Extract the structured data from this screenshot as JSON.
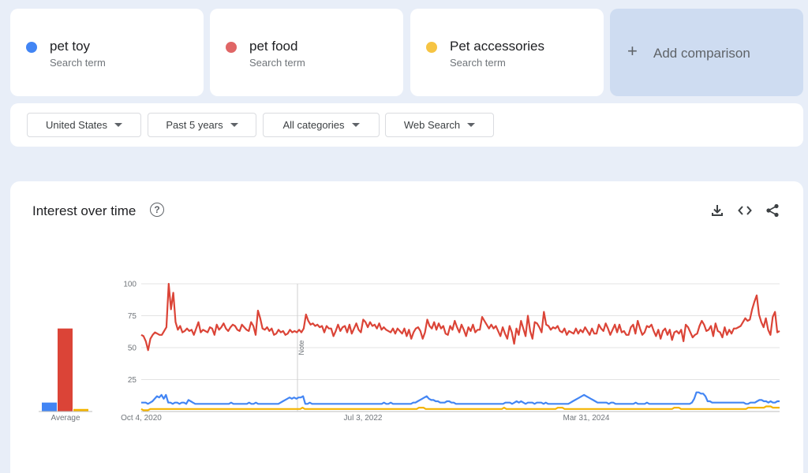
{
  "terms": [
    {
      "name": "pet toy",
      "sub": "Search term",
      "color": "#4285f4"
    },
    {
      "name": "pet food",
      "sub": "Search term",
      "color": "#db4437"
    },
    {
      "name": "Pet accessories",
      "sub": "Search term",
      "color": "#f4b400"
    }
  ],
  "add_comparison": "Add comparison",
  "filters": {
    "region": "United States",
    "period": "Past 5 years",
    "category": "All categories",
    "search_type": "Web Search"
  },
  "panel": {
    "title": "Interest over time",
    "help_icon": "help-circle-icon",
    "tools": [
      "download-icon",
      "embed-code-icon",
      "share-icon"
    ]
  },
  "chart_data": {
    "type": "line",
    "ylim": [
      0,
      100
    ],
    "y_ticks": [
      25,
      50,
      75,
      100
    ],
    "x_tick_labels": [
      "Oct 4, 2020",
      "Jul 3, 2022",
      "Mar 31, 2024"
    ],
    "note_label": "Note",
    "average_label": "Average",
    "averages": [
      {
        "name": "pet toy",
        "value": 7
      },
      {
        "name": "pet food",
        "value": 65
      },
      {
        "name": "Pet accessories",
        "value": 2
      }
    ],
    "series": [
      {
        "name": "pet food",
        "color": "#db4437",
        "values": [
          60,
          59,
          55,
          48,
          57,
          60,
          62,
          61,
          60,
          60,
          63,
          66,
          100,
          80,
          93,
          70,
          64,
          67,
          62,
          63,
          65,
          63,
          64,
          60,
          65,
          70,
          62,
          64,
          63,
          62,
          66,
          65,
          60,
          68,
          64,
          66,
          69,
          65,
          63,
          66,
          68,
          67,
          64,
          63,
          68,
          66,
          64,
          63,
          70,
          67,
          60,
          79,
          73,
          65,
          64,
          66,
          63,
          65,
          60,
          61,
          64,
          62,
          63,
          60,
          61,
          64,
          62,
          63,
          62,
          64,
          62,
          65,
          76,
          71,
          68,
          69,
          67,
          68,
          66,
          67,
          62,
          67,
          65,
          65,
          59,
          63,
          68,
          63,
          66,
          67,
          62,
          68,
          61,
          65,
          69,
          64,
          62,
          72,
          70,
          66,
          70,
          67,
          68,
          65,
          69,
          64,
          66,
          64,
          63,
          62,
          65,
          61,
          65,
          63,
          61,
          65,
          59,
          64,
          57,
          62,
          65,
          66,
          63,
          57,
          62,
          72,
          67,
          65,
          70,
          64,
          69,
          65,
          67,
          61,
          60,
          67,
          64,
          71,
          66,
          62,
          68,
          64,
          59,
          66,
          63,
          68,
          62,
          64,
          64,
          74,
          71,
          68,
          65,
          68,
          65,
          67,
          63,
          59,
          66,
          61,
          57,
          67,
          62,
          53,
          65,
          60,
          71,
          65,
          59,
          75,
          63,
          57,
          70,
          69,
          66,
          62,
          78,
          68,
          67,
          64,
          66,
          65,
          67,
          63,
          62,
          65,
          60,
          63,
          62,
          61,
          65,
          61,
          64,
          62,
          66,
          63,
          60,
          65,
          61,
          61,
          68,
          65,
          63,
          69,
          65,
          60,
          64,
          68,
          62,
          68,
          62,
          63,
          60,
          60,
          66,
          68,
          61,
          71,
          65,
          60,
          62,
          67,
          66,
          68,
          63,
          59,
          64,
          57,
          63,
          65,
          60,
          64,
          56,
          62,
          63,
          61,
          64,
          55,
          68,
          66,
          62,
          58,
          60,
          61,
          67,
          71,
          68,
          63,
          64,
          67,
          59,
          69,
          63,
          62,
          58,
          66,
          60,
          64,
          61,
          65,
          65,
          66,
          67,
          70,
          73,
          71,
          72,
          80,
          86,
          91,
          76,
          70,
          66,
          73,
          64,
          60,
          74,
          78,
          62,
          63
        ]
      },
      {
        "name": "pet toy",
        "color": "#4285f4",
        "values": [
          7,
          7,
          7,
          6,
          7,
          8,
          10,
          12,
          11,
          13,
          10,
          13,
          7,
          7,
          6,
          7,
          7,
          6,
          7,
          7,
          6,
          9,
          8,
          7,
          6,
          6,
          6,
          6,
          6,
          6,
          6,
          6,
          6,
          6,
          6,
          6,
          6,
          6,
          6,
          6,
          7,
          6,
          6,
          6,
          6,
          6,
          6,
          6,
          7,
          6,
          6,
          7,
          6,
          6,
          6,
          6,
          6,
          6,
          6,
          6,
          6,
          6,
          7,
          8,
          9,
          10,
          11,
          10,
          11,
          10,
          11,
          11,
          12,
          6,
          6,
          7,
          6,
          6,
          6,
          6,
          6,
          6,
          6,
          6,
          6,
          6,
          6,
          6,
          6,
          6,
          6,
          6,
          6,
          6,
          6,
          6,
          6,
          6,
          6,
          6,
          6,
          6,
          6,
          6,
          6,
          6,
          6,
          6,
          7,
          6,
          6,
          7,
          6,
          6,
          6,
          6,
          6,
          6,
          6,
          6,
          6,
          7,
          7,
          8,
          9,
          10,
          11,
          12,
          10,
          9,
          9,
          8,
          8,
          7,
          7,
          7,
          8,
          8,
          7,
          7,
          6,
          6,
          6,
          6,
          6,
          6,
          6,
          6,
          6,
          6,
          6,
          6,
          6,
          6,
          6,
          6,
          6,
          6,
          6,
          6,
          6,
          6,
          7,
          7,
          7,
          6,
          7,
          8,
          7,
          8,
          7,
          6,
          7,
          7,
          7,
          6,
          7,
          7,
          7,
          6,
          7,
          6,
          6,
          6,
          6,
          6,
          6,
          6,
          6,
          6,
          6,
          7,
          8,
          9,
          10,
          11,
          12,
          13,
          12,
          11,
          10,
          9,
          8,
          7,
          7,
          7,
          7,
          7,
          6,
          7,
          7,
          6,
          6,
          6,
          6,
          6,
          6,
          6,
          6,
          6,
          7,
          6,
          6,
          6,
          6,
          7,
          6,
          6,
          6,
          6,
          6,
          6,
          6,
          6,
          6,
          6,
          6,
          6,
          6,
          6,
          6,
          6,
          6,
          6,
          6,
          7,
          10,
          15,
          15,
          14,
          14,
          12,
          8,
          8,
          7,
          7,
          7,
          7,
          7,
          7,
          7,
          7,
          7,
          7,
          7,
          7,
          7,
          7,
          7,
          6,
          6,
          7,
          7,
          7,
          8,
          9,
          9,
          8,
          8,
          7,
          8,
          7,
          7,
          8,
          8
        ]
      },
      {
        "name": "Pet accessories",
        "color": "#f4b400",
        "values": [
          2,
          1,
          1,
          1,
          2,
          2,
          2,
          2,
          2,
          2,
          2,
          2,
          2,
          2,
          2,
          2,
          2,
          2,
          2,
          2,
          2,
          2,
          2,
          2,
          2,
          2,
          2,
          2,
          2,
          2,
          2,
          2,
          2,
          2,
          2,
          2,
          2,
          2,
          2,
          2,
          2,
          2,
          2,
          2,
          2,
          2,
          2,
          2,
          2,
          2,
          2,
          2,
          2,
          2,
          2,
          2,
          2,
          2,
          2,
          2,
          2,
          2,
          2,
          2,
          2,
          2,
          2,
          2,
          2,
          2,
          2,
          2,
          3,
          2,
          2,
          2,
          2,
          2,
          2,
          2,
          2,
          2,
          2,
          2,
          2,
          2,
          2,
          2,
          2,
          2,
          2,
          2,
          2,
          2,
          2,
          2,
          2,
          2,
          2,
          2,
          2,
          2,
          2,
          2,
          2,
          2,
          2,
          2,
          2,
          2,
          2,
          2,
          2,
          2,
          2,
          2,
          2,
          2,
          2,
          2,
          2,
          2,
          2,
          2,
          3,
          3,
          3,
          2,
          2,
          2,
          2,
          2,
          2,
          2,
          2,
          2,
          2,
          2,
          2,
          2,
          2,
          2,
          2,
          2,
          2,
          2,
          2,
          2,
          2,
          2,
          2,
          2,
          2,
          2,
          2,
          2,
          2,
          2,
          2,
          2,
          2,
          2,
          3,
          2,
          2,
          2,
          2,
          2,
          2,
          2,
          2,
          2,
          2,
          2,
          2,
          2,
          2,
          2,
          2,
          2,
          2,
          2,
          2,
          2,
          2,
          2,
          3,
          3,
          3,
          2,
          2,
          2,
          2,
          2,
          2,
          2,
          2,
          2,
          2,
          2,
          2,
          2,
          2,
          2,
          2,
          2,
          2,
          2,
          2,
          2,
          2,
          2,
          2,
          2,
          2,
          2,
          2,
          2,
          2,
          2,
          2,
          2,
          2,
          2,
          2,
          2,
          2,
          2,
          2,
          2,
          2,
          2,
          2,
          2,
          2,
          2,
          2,
          2,
          3,
          3,
          3,
          2,
          2,
          2,
          2,
          2,
          2,
          2,
          2,
          2,
          2,
          2,
          2,
          2,
          2,
          2,
          2,
          2,
          2,
          2,
          2,
          2,
          2,
          2,
          2,
          2,
          2,
          2,
          2,
          2,
          2,
          3,
          3,
          3,
          3,
          3,
          3,
          3,
          3,
          4,
          4,
          4,
          3,
          3,
          3,
          3
        ]
      }
    ]
  }
}
